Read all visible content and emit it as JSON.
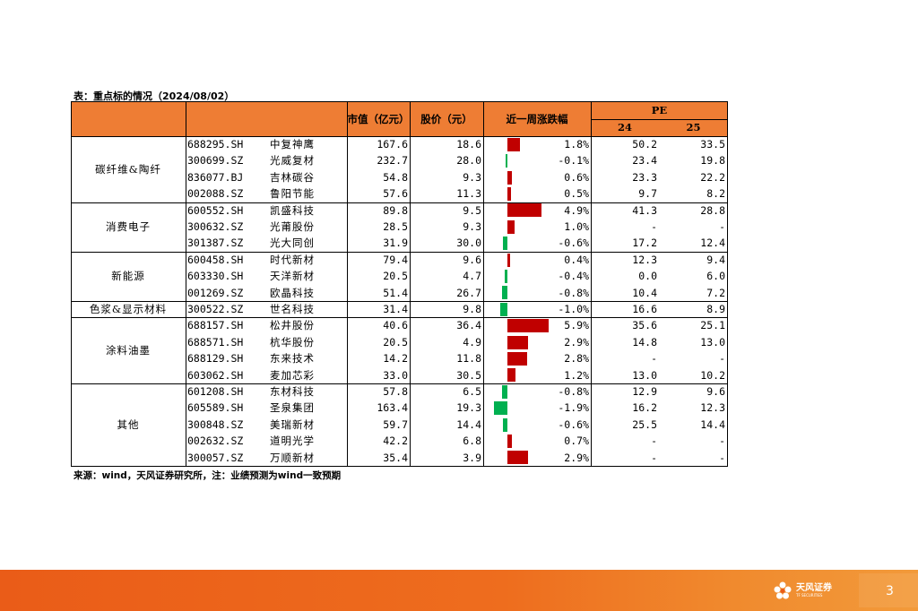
{
  "caption": "表：重点标的情况（2024/08/02）",
  "source": "来源：wind，天风证券研究所，注：业绩预测为wind一致预期",
  "colors": {
    "header_bg": "#ee7d34",
    "bar_up": "#c00000",
    "bar_down": "#00b050",
    "footer": "#ea5c18"
  },
  "header": {
    "mcap": "市值（亿元）",
    "price": "股价（元）",
    "change": "近一周涨跌幅",
    "pe": "PE",
    "pe_24": "24",
    "pe_25": "25"
  },
  "groups": [
    {
      "name": "碳纤维&陶纤",
      "start": 0,
      "count": 4
    },
    {
      "name": "消费电子",
      "start": 4,
      "count": 3
    },
    {
      "name": "新能源",
      "start": 7,
      "count": 3
    },
    {
      "name": "色浆&显示材料",
      "start": 10,
      "count": 1
    },
    {
      "name": "涂料油墨",
      "start": 11,
      "count": 4
    },
    {
      "name": "其他",
      "start": 15,
      "count": 5
    }
  ],
  "rows": [
    {
      "code": "688295.SH",
      "name": "中复神鹰",
      "mcap": "167.6",
      "price": "18.6",
      "change": "1.8%",
      "change_value": 1.8,
      "pe24": "50.2",
      "pe25": "33.5"
    },
    {
      "code": "300699.SZ",
      "name": "光威复材",
      "mcap": "232.7",
      "price": "28.0",
      "change": "-0.1%",
      "change_value": -0.1,
      "pe24": "23.4",
      "pe25": "19.8"
    },
    {
      "code": "836077.BJ",
      "name": "吉林碳谷",
      "mcap": "54.8",
      "price": "9.3",
      "change": "0.6%",
      "change_value": 0.6,
      "pe24": "23.3",
      "pe25": "22.2"
    },
    {
      "code": "002088.SZ",
      "name": "鲁阳节能",
      "mcap": "57.6",
      "price": "11.3",
      "change": "0.5%",
      "change_value": 0.5,
      "pe24": "9.7",
      "pe25": "8.2"
    },
    {
      "code": "600552.SH",
      "name": "凯盛科技",
      "mcap": "89.8",
      "price": "9.5",
      "change": "4.9%",
      "change_value": 4.9,
      "pe24": "41.3",
      "pe25": "28.8"
    },
    {
      "code": "300632.SZ",
      "name": "光莆股份",
      "mcap": "28.5",
      "price": "9.3",
      "change": "1.0%",
      "change_value": 1.0,
      "pe24": "-",
      "pe25": "-"
    },
    {
      "code": "301387.SZ",
      "name": "光大同创",
      "mcap": "31.9",
      "price": "30.0",
      "change": "-0.6%",
      "change_value": -0.6,
      "pe24": "17.2",
      "pe25": "12.4"
    },
    {
      "code": "600458.SH",
      "name": "时代新材",
      "mcap": "79.4",
      "price": "9.6",
      "change": "0.4%",
      "change_value": 0.4,
      "pe24": "12.3",
      "pe25": "9.4"
    },
    {
      "code": "603330.SH",
      "name": "天洋新材",
      "mcap": "20.5",
      "price": "4.7",
      "change": "-0.4%",
      "change_value": -0.4,
      "pe24": "0.0",
      "pe25": "6.0"
    },
    {
      "code": "001269.SZ",
      "name": "欧晶科技",
      "mcap": "51.4",
      "price": "26.7",
      "change": "-0.8%",
      "change_value": -0.8,
      "pe24": "10.4",
      "pe25": "7.2"
    },
    {
      "code": "300522.SZ",
      "name": "世名科技",
      "mcap": "31.4",
      "price": "9.8",
      "change": "-1.0%",
      "change_value": -1.0,
      "pe24": "16.6",
      "pe25": "8.9"
    },
    {
      "code": "688157.SH",
      "name": "松井股份",
      "mcap": "40.6",
      "price": "36.4",
      "change": "5.9%",
      "change_value": 5.9,
      "pe24": "35.6",
      "pe25": "25.1"
    },
    {
      "code": "688571.SH",
      "name": "杭华股份",
      "mcap": "20.5",
      "price": "4.9",
      "change": "2.9%",
      "change_value": 2.9,
      "pe24": "14.8",
      "pe25": "13.0"
    },
    {
      "code": "688129.SH",
      "name": "东来技术",
      "mcap": "14.2",
      "price": "11.8",
      "change": "2.8%",
      "change_value": 2.8,
      "pe24": "-",
      "pe25": "-"
    },
    {
      "code": "603062.SH",
      "name": "麦加芯彩",
      "mcap": "33.0",
      "price": "30.5",
      "change": "1.2%",
      "change_value": 1.2,
      "pe24": "13.0",
      "pe25": "10.2"
    },
    {
      "code": "601208.SH",
      "name": "东材科技",
      "mcap": "57.8",
      "price": "6.5",
      "change": "-0.8%",
      "change_value": -0.8,
      "pe24": "12.9",
      "pe25": "9.6"
    },
    {
      "code": "605589.SH",
      "name": "圣泉集团",
      "mcap": "163.4",
      "price": "19.3",
      "change": "-1.9%",
      "change_value": -1.9,
      "pe24": "16.2",
      "pe25": "12.3"
    },
    {
      "code": "300848.SZ",
      "name": "美瑞新材",
      "mcap": "59.7",
      "price": "14.4",
      "change": "-0.6%",
      "change_value": -0.6,
      "pe24": "25.5",
      "pe25": "14.4"
    },
    {
      "code": "002632.SZ",
      "name": "道明光学",
      "mcap": "42.2",
      "price": "6.8",
      "change": "0.7%",
      "change_value": 0.7,
      "pe24": "-",
      "pe25": "-"
    },
    {
      "code": "300057.SZ",
      "name": "万顺新材",
      "mcap": "35.4",
      "price": "3.9",
      "change": "2.9%",
      "change_value": 2.9,
      "pe24": "-",
      "pe25": "-"
    }
  ],
  "footer": {
    "logo_text": "天风证券",
    "logo_sub": "TF SECURITIES",
    "page": "3"
  }
}
